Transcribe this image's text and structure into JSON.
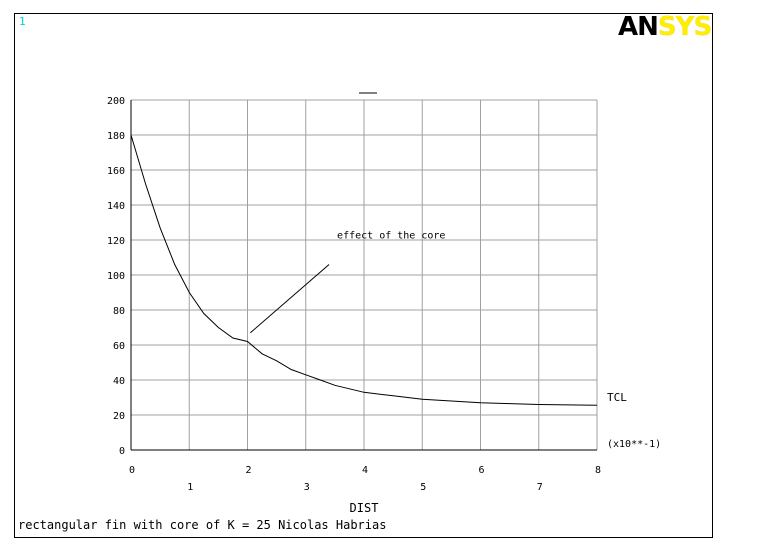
{
  "window_number": "1",
  "logo": {
    "part1": "AN",
    "part2": "SYS"
  },
  "footer_text": "rectangular fin with core of K = 25 Nicolas Habrias",
  "colors": {
    "logo_dark": "#000000",
    "logo_accent": "#ffee00",
    "window_number": "#00d0d0",
    "grid": "#a0a0a0",
    "curve": "#000000"
  },
  "chart_data": {
    "type": "line",
    "title": "",
    "xlabel": "DIST",
    "ylabel": "",
    "x_multiplier_label": "(x10**-1)",
    "xlim": [
      0,
      8
    ],
    "ylim": [
      0,
      200
    ],
    "x_ticks_upper": [
      "0",
      "2",
      "4",
      "6",
      "8"
    ],
    "x_ticks_lower": [
      "1",
      "3",
      "5",
      "7"
    ],
    "y_ticks": [
      "0",
      "20",
      "40",
      "60",
      "80",
      "100",
      "120",
      "140",
      "160",
      "180",
      "200"
    ],
    "grid": true,
    "series": [
      {
        "name": "TCL",
        "x": [
          0,
          0.25,
          0.5,
          0.75,
          1.0,
          1.25,
          1.5,
          1.75,
          2.0,
          2.25,
          2.5,
          2.75,
          3.0,
          3.25,
          3.5,
          3.75,
          4.0,
          4.5,
          5.0,
          5.5,
          6.0,
          6.5,
          7.0,
          7.5,
          8.0
        ],
        "y": [
          180,
          152,
          127,
          106,
          90,
          78,
          70,
          64,
          62,
          55,
          51,
          46,
          43,
          40,
          37,
          35,
          33,
          31,
          29,
          28,
          27,
          26.5,
          26,
          25.8,
          25.6
        ]
      }
    ],
    "annotations": [
      {
        "text": "effect of the core",
        "pointer_from": [
          3.4,
          106
        ],
        "pointer_to": [
          2.05,
          67
        ]
      }
    ]
  }
}
